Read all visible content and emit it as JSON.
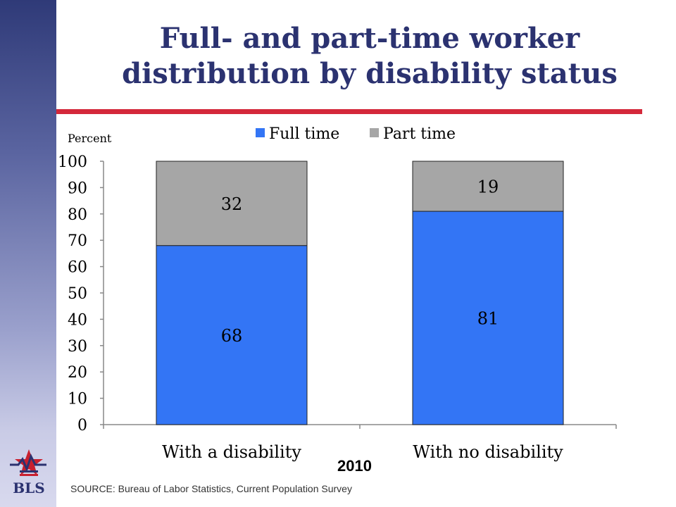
{
  "header": {
    "title_line1": "Full- and part-time worker",
    "title_line2": "distribution by disability status"
  },
  "colors": {
    "accent_rule": "#d4283a",
    "title": "#2b3270",
    "full_time": "#3375f5",
    "part_time": "#a6a6a6"
  },
  "chart_data": {
    "type": "bar",
    "stacked": true,
    "ylabel": "Percent",
    "ylim": [
      0,
      100
    ],
    "yticks": [
      0,
      10,
      20,
      30,
      40,
      50,
      60,
      70,
      80,
      90,
      100
    ],
    "categories": [
      "With a disability",
      "With no disability"
    ],
    "series": [
      {
        "name": "Full time",
        "values": [
          68,
          81
        ],
        "color": "#3375f5"
      },
      {
        "name": "Part time",
        "values": [
          32,
          19
        ],
        "color": "#a6a6a6"
      }
    ],
    "legend_position": "top",
    "grid": false
  },
  "footer": {
    "year_label": "2010",
    "source": "SOURCE:  Bureau of Labor Statistics, Current Population Survey",
    "logo_text": "BLS"
  }
}
